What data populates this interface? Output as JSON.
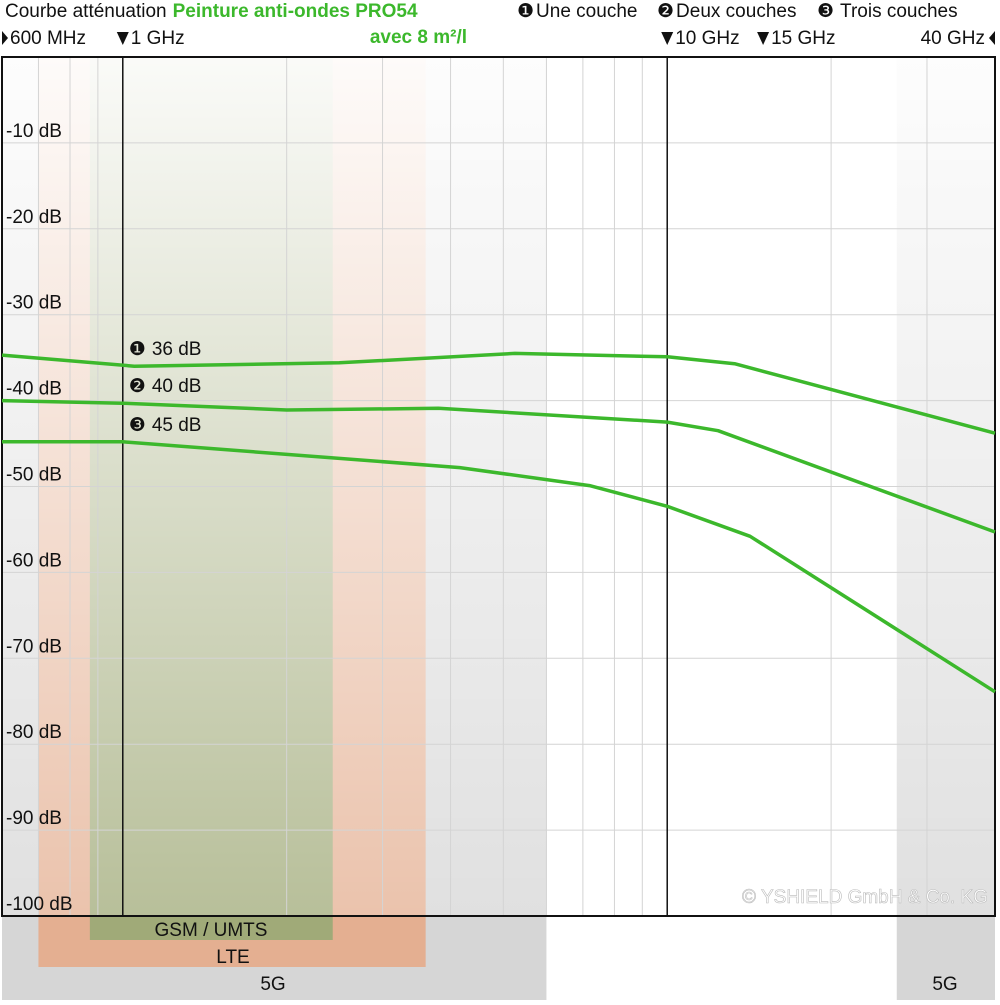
{
  "chart_data": {
    "type": "line",
    "title": "Courbe atténuation",
    "subtitle": "Peinture anti-ondes PRO54",
    "subtitle2": "avec 8 m²/l",
    "watermark": "© YSHIELD GmbH & Co. KG",
    "xscale": "log",
    "xlim": [
      0.6,
      40
    ],
    "xticks": [
      {
        "value": 0.6,
        "label": "600 MHz"
      },
      {
        "value": 1,
        "label": "1 GHz"
      },
      {
        "value": 10,
        "label": "10 GHz"
      },
      {
        "value": 15,
        "label": "15 GHz"
      },
      {
        "value": 40,
        "label": "40 GHz"
      }
    ],
    "xgrid": [
      0.7,
      0.8,
      0.9,
      2,
      3,
      4,
      5,
      6,
      7,
      8,
      9,
      20,
      30
    ],
    "reference_lines": [
      1,
      10
    ],
    "ylim": [
      -100,
      0
    ],
    "yticks": [
      {
        "value": -10,
        "label": "-10 dB"
      },
      {
        "value": -20,
        "label": "-20 dB"
      },
      {
        "value": -30,
        "label": "-30 dB"
      },
      {
        "value": -40,
        "label": "-40 dB"
      },
      {
        "value": -50,
        "label": "-50 dB"
      },
      {
        "value": -60,
        "label": "-60 dB"
      },
      {
        "value": -70,
        "label": "-70 dB"
      },
      {
        "value": -80,
        "label": "-80 dB"
      },
      {
        "value": -90,
        "label": "-90 dB"
      },
      {
        "value": -100,
        "label": "-100 dB"
      }
    ],
    "grid": true,
    "bands": [
      {
        "name": "5G",
        "range": [
          0.6,
          6
        ],
        "color": "#c8c8c8"
      },
      {
        "name": "5G",
        "range": [
          26.4,
          40
        ],
        "color": "#c8c8c8"
      },
      {
        "name": "LTE",
        "range": [
          0.7,
          3.6
        ],
        "color": "#e8a27a"
      },
      {
        "name": "GSM / UMTS",
        "range": [
          0.87,
          2.43
        ],
        "color": "#8aa870"
      }
    ],
    "series": [
      {
        "name": "Une couche",
        "symbol": "❶",
        "label": "36 dB",
        "color": "#3cb82c",
        "x": [
          0.6,
          1.05,
          2.5,
          5.25,
          10,
          13.3,
          40
        ],
        "values": [
          -34.7,
          -36,
          -35.6,
          -34.5,
          -34.9,
          -35.7,
          -43.8
        ]
      },
      {
        "name": "Deux couches",
        "symbol": "❷",
        "label": "40 dB",
        "color": "#3cb82c",
        "x": [
          0.6,
          1,
          2,
          3.8,
          10,
          12.4,
          40
        ],
        "values": [
          -40,
          -40.3,
          -41.1,
          -40.9,
          -42.5,
          -43.5,
          -55.3
        ]
      },
      {
        "name": "Trois couches",
        "symbol": "❸",
        "label": "45 dB",
        "color": "#3cb82c",
        "x": [
          0.6,
          1,
          4.16,
          7.2,
          10,
          14.2,
          40
        ],
        "values": [
          -44.8,
          -44.8,
          -47.8,
          -49.9,
          -52.3,
          -55.8,
          -73.9
        ]
      }
    ]
  }
}
